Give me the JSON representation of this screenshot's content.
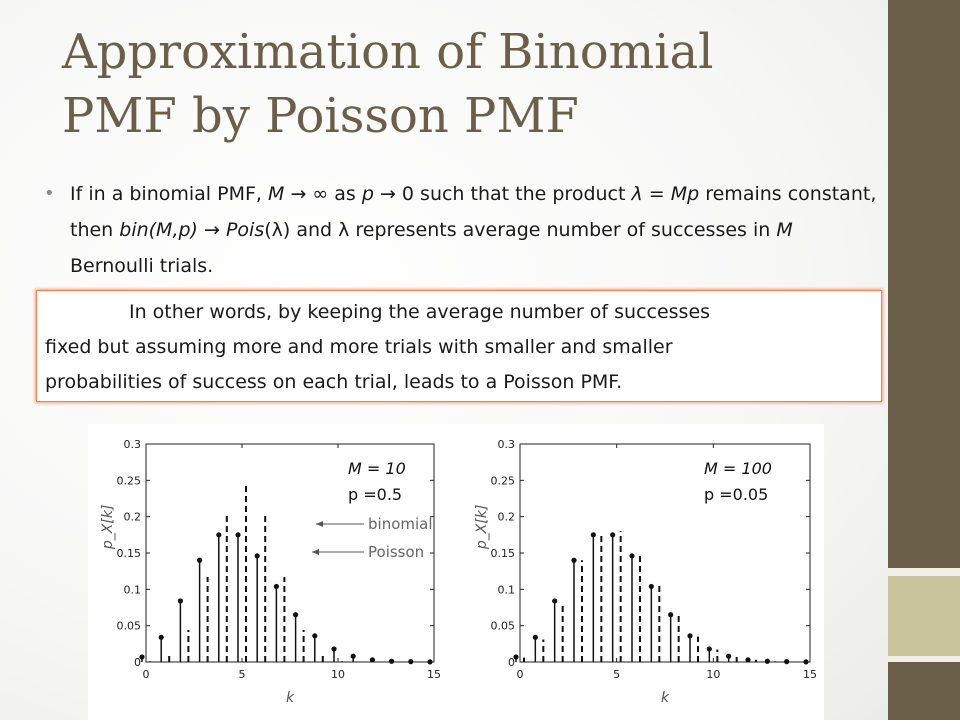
{
  "title": {
    "line1": "Approximation of Binomial",
    "line2": "PMF by Poisson PMF"
  },
  "bullet": {
    "symbol": "•",
    "p1": "If in a binomial PMF, ",
    "M": "M",
    "arrow1": " → ∞ as ",
    "p": "p",
    "arrow2": " → 0 such that the product ",
    "lambda_eq": "λ = Mp",
    "p3": " remains constant, then ",
    "bin": "bin(M,p)",
    "arrow3": " → ",
    "pois": "Pois",
    "p4": "(λ) and λ represents average number of successes in ",
    "M2": "M",
    "p5": " Bernoulli trials."
  },
  "callout": {
    "line1": "In other words, by keeping the average number of successes",
    "line2": "fixed but assuming more and more trials with smaller and smaller",
    "line3": "probabilities  of success on each trial, leads to a Poisson PMF."
  },
  "colors": {
    "title": "#6b5f49",
    "sidebar_dark": "#6b5f49",
    "sidebar_light": "#c8c39b",
    "callout_border": "#e88457"
  },
  "chart_data": [
    {
      "type": "scatter",
      "style": "stem",
      "params": {
        "M_label": "M = 10",
        "p_label": "p =0.5"
      },
      "xlabel": "k",
      "ylabel": "p_X[k]",
      "xlim": [
        0,
        15
      ],
      "ylim": [
        0,
        0.3
      ],
      "xticks": [
        "0",
        "5",
        "10",
        "15"
      ],
      "yticks": [
        "0",
        "0.05",
        "0.1",
        "0.15",
        "0.2",
        "0.25",
        "0.3"
      ],
      "annotations": [
        "binomial",
        "Poisson"
      ],
      "series": [
        {
          "name": "binomial",
          "style": "dashed",
          "x": [
            0,
            1,
            2,
            3,
            4,
            5,
            6,
            7,
            8,
            9,
            10,
            11,
            12,
            13,
            14,
            15
          ],
          "y": [
            0.001,
            0.01,
            0.044,
            0.117,
            0.205,
            0.246,
            0.205,
            0.117,
            0.044,
            0.01,
            0.001,
            0,
            0,
            0,
            0,
            0
          ]
        },
        {
          "name": "Poisson",
          "style": "solid-dot",
          "x": [
            0,
            1,
            2,
            3,
            4,
            5,
            6,
            7,
            8,
            9,
            10,
            11,
            12,
            13,
            14,
            15
          ],
          "y": [
            0.007,
            0.034,
            0.084,
            0.14,
            0.175,
            0.175,
            0.146,
            0.104,
            0.065,
            0.036,
            0.018,
            0.008,
            0.003,
            0.001,
            0.0005,
            0.0002
          ]
        }
      ]
    },
    {
      "type": "scatter",
      "style": "stem",
      "params": {
        "M_label": "M = 100",
        "p_label": "p =0.05"
      },
      "xlabel": "k",
      "ylabel": "p_X[k]",
      "xlim": [
        0,
        15
      ],
      "ylim": [
        0,
        0.3
      ],
      "xticks": [
        "0",
        "5",
        "10",
        "15"
      ],
      "yticks": [
        "0",
        "0.05",
        "0.1",
        "0.15",
        "0.2",
        "0.25",
        "0.3"
      ],
      "series": [
        {
          "name": "binomial",
          "style": "dashed",
          "x": [
            0,
            1,
            2,
            3,
            4,
            5,
            6,
            7,
            8,
            9,
            10,
            11,
            12,
            13,
            14,
            15
          ],
          "y": [
            0.006,
            0.031,
            0.081,
            0.14,
            0.178,
            0.18,
            0.15,
            0.106,
            0.065,
            0.035,
            0.017,
            0.007,
            0.003,
            0.001,
            0.0004,
            0.0001
          ]
        },
        {
          "name": "Poisson",
          "style": "solid-dot",
          "x": [
            0,
            1,
            2,
            3,
            4,
            5,
            6,
            7,
            8,
            9,
            10,
            11,
            12,
            13,
            14,
            15
          ],
          "y": [
            0.007,
            0.034,
            0.084,
            0.14,
            0.175,
            0.175,
            0.146,
            0.104,
            0.065,
            0.036,
            0.018,
            0.008,
            0.003,
            0.001,
            0.0005,
            0.0002
          ]
        }
      ]
    }
  ]
}
